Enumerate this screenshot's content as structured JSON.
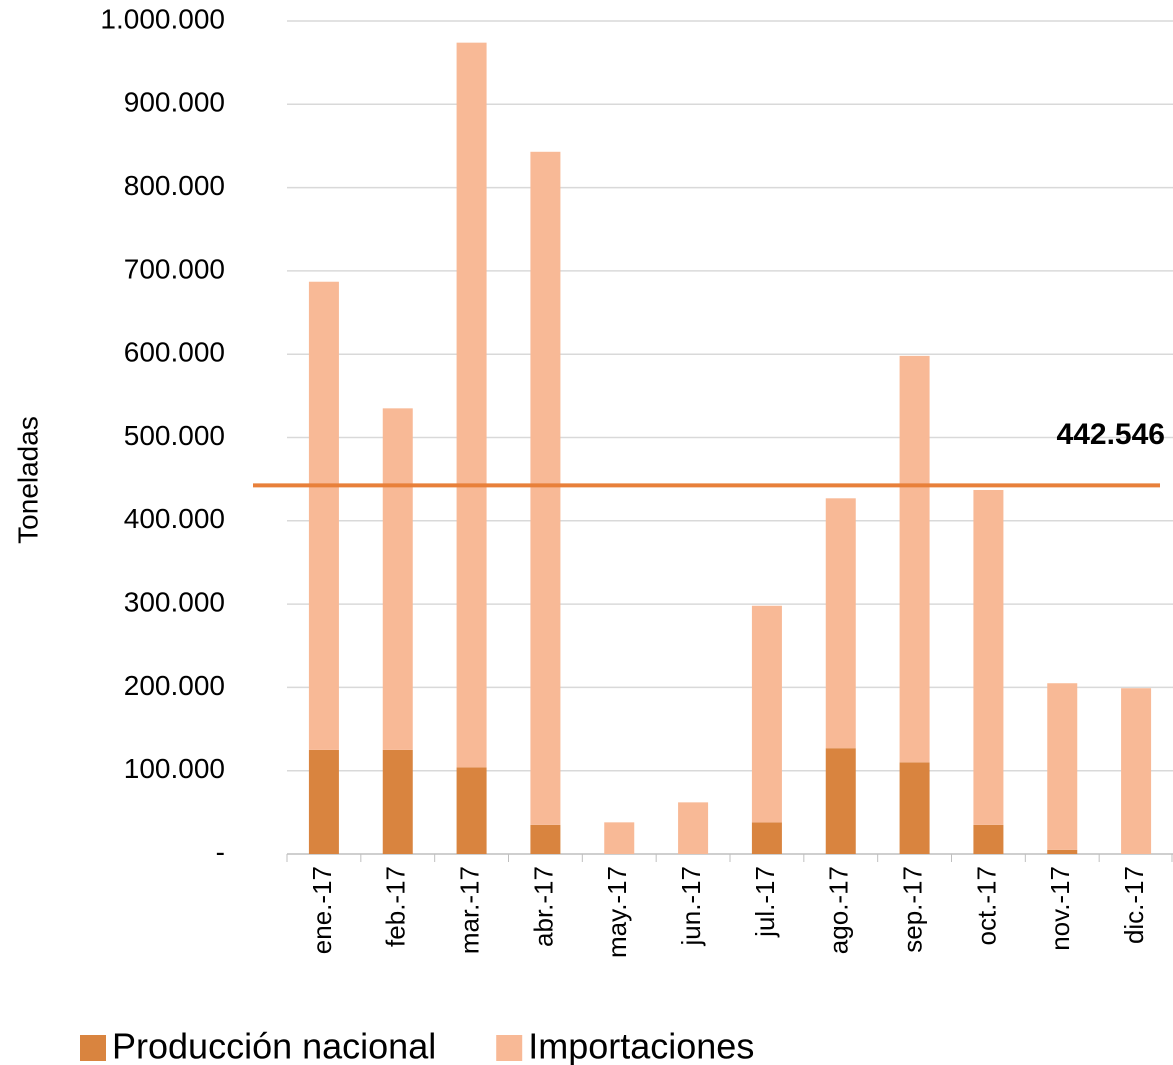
{
  "chart_data": {
    "type": "stacked_bar",
    "y_label": "Toneladas",
    "categories": [
      "ene.-17",
      "feb.-17",
      "mar.-17",
      "abr.-17",
      "may.-17",
      "jun.-17",
      "jul.-17",
      "ago.-17",
      "sep.-17",
      "oct.-17",
      "nov.-17",
      "dic.-17"
    ],
    "series": [
      {
        "name": "Producción nacional",
        "color": "#d9843f",
        "values": [
          125000,
          125000,
          104000,
          35000,
          0,
          0,
          38000,
          127000,
          110000,
          35000,
          5000,
          0
        ]
      },
      {
        "name": "Importaciones",
        "color": "#f8b996",
        "values": [
          562000,
          410000,
          870000,
          808000,
          38000,
          62000,
          260000,
          300000,
          488000,
          402000,
          200000,
          199000
        ]
      }
    ],
    "reference_line": {
      "value": 442546,
      "label": "442.546",
      "color": "#e8803a"
    },
    "ylim": [
      0,
      1000000
    ],
    "yticks": [
      {
        "value": 0,
        "label": "-"
      },
      {
        "value": 100000,
        "label": "100.000"
      },
      {
        "value": 200000,
        "label": "200.000"
      },
      {
        "value": 300000,
        "label": "300.000"
      },
      {
        "value": 400000,
        "label": "400.000"
      },
      {
        "value": 500000,
        "label": "500.000"
      },
      {
        "value": 600000,
        "label": "600.000"
      },
      {
        "value": 700000,
        "label": "700.000"
      },
      {
        "value": 800000,
        "label": "800.000"
      },
      {
        "value": 900000,
        "label": "900.000"
      },
      {
        "value": 1000000,
        "label": "1.000.000"
      }
    ],
    "grid": true,
    "legend": "bottom"
  }
}
